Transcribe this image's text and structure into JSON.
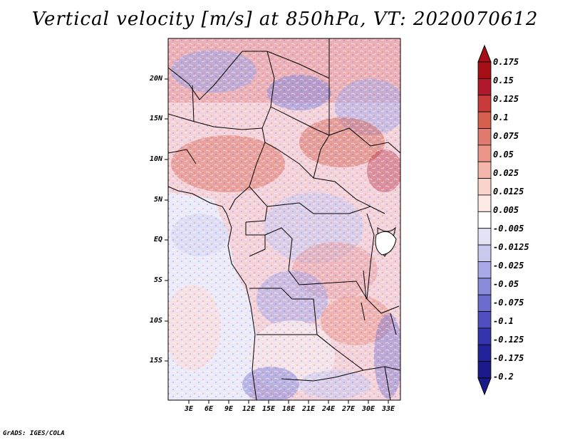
{
  "title": "Vertical velocity [m/s] at 850hPa, VT: 2020070612",
  "credit": "GrADS: IGES/COLA",
  "lat_ticks": [
    "20N",
    "15N",
    "10N",
    "5N",
    "EQ",
    "5S",
    "10S",
    "15S"
  ],
  "lon_ticks": [
    "3E",
    "6E",
    "9E",
    "12E",
    "15E",
    "18E",
    "21E",
    "24E",
    "27E",
    "30E",
    "33E"
  ],
  "colorbar": {
    "labels": [
      "0.175",
      "0.15",
      "0.125",
      "0.1",
      "0.075",
      "0.05",
      "0.025",
      "0.0125",
      "0.005",
      "-0.005",
      "-0.0125",
      "-0.025",
      "-0.05",
      "-0.075",
      "-0.1",
      "-0.125",
      "-0.175",
      "-0.2"
    ],
    "colors": [
      "#a50f15",
      "#b2182b",
      "#c93a3a",
      "#d6604d",
      "#e07a6c",
      "#ec968a",
      "#f4b5ab",
      "#f9d3cc",
      "#fde9e5",
      "#ffffff",
      "#e3e3f7",
      "#c9c9f0",
      "#a9a9e8",
      "#8b8bdc",
      "#6c6ccf",
      "#4f4fc0",
      "#3434ad",
      "#22229a",
      "#1a1a8a"
    ]
  }
}
